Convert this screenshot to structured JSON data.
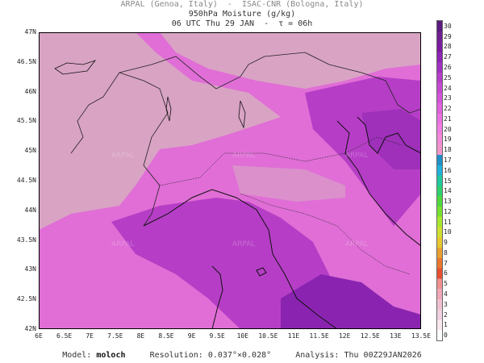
{
  "header": {
    "line1": "ARPAL (Genoa, Italy)  -  ISAC-CNR (Bologna, Italy)",
    "line2": "950hPa Moisture (g/kg)",
    "line3": "06 UTC Thu 29 JAN  -  τ = 06h"
  },
  "map": {
    "lat_labels": [
      "47N",
      "46.5N",
      "46N",
      "45.5N",
      "45N",
      "44.5N",
      "44N",
      "43.5N",
      "43N",
      "42.5N",
      "42N"
    ],
    "lon_labels": [
      "6E",
      "6.5E",
      "7E",
      "7.5E",
      "8E",
      "8.5E",
      "9E",
      "9.5E",
      "10E",
      "10.5E",
      "11E",
      "11.5E",
      "12E",
      "12.5E",
      "13E",
      "13.5E"
    ],
    "watermark": "ARPAL",
    "colors": {
      "low": "#d9a3c4",
      "mid": "#e06ed6",
      "high": "#b63ec6",
      "top": "#8a24b0",
      "coast": "#111111",
      "border": "#222222"
    }
  },
  "colorbar": {
    "labels": [
      "30",
      "29",
      "28",
      "27",
      "26",
      "25",
      "24",
      "23",
      "22",
      "21",
      "20",
      "19",
      "18",
      "17",
      "16",
      "15",
      "14",
      "13",
      "12",
      "11",
      "10",
      "9",
      "8",
      "7",
      "6",
      "5",
      "4",
      "3",
      "2",
      "1",
      "0"
    ],
    "colors": [
      "#5a1a80",
      "#6e2090",
      "#7a1aa0",
      "#8c24b4",
      "#a030c0",
      "#b43ec8",
      "#c44ad0",
      "#d456d8",
      "#e062dc",
      "#ea72e0",
      "#f07ee2",
      "#f28ad8",
      "#f096c8",
      "#2090c8",
      "#20b0d8",
      "#20c8a0",
      "#30d070",
      "#50d840",
      "#78e030",
      "#a8e830",
      "#d0e030",
      "#e8c830",
      "#e8a030",
      "#e87830",
      "#e85030",
      "#f09090",
      "#f0a8b8",
      "#f0c0d0",
      "#f0d0e0",
      "#f8e8f0",
      "#ffffff"
    ]
  },
  "footer": {
    "model_label": "Model:",
    "model_value": "moloch",
    "resolution_label": "Resolution:",
    "resolution_value": "0.037°×0.028°",
    "analysis_label": "Analysis:",
    "analysis_value": "Thu 00Z29JAN2026"
  }
}
